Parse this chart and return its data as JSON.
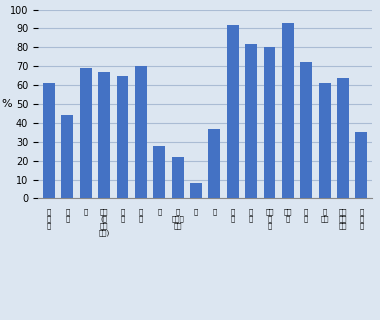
{
  "values": [
    61,
    44,
    69,
    67,
    65,
    70,
    28,
    22,
    8,
    37,
    92,
    82,
    80,
    93,
    72,
    61,
    64,
    35
  ],
  "labels": [
    "全\n部\n位",
    "町\n道",
    "胃",
    "大腥\n(結\n腥・\n直腥)",
    "結\n腥",
    "直\n腥",
    "肝",
    "胆\nのう・\n胆管",
    "膚",
    "肺",
    "乳\n房",
    "子\n宮",
    "子宮\n颢\n部",
    "前立\n腔",
    "膚\n脱",
    "腎\nなど",
    "悪性\nリン\nパ脳",
    "白\n血\n病"
  ],
  "bar_color": "#4472C4",
  "plot_bg_color": "#DCE6F1",
  "fig_bg_color": "#DCE6F1",
  "grid_color": "#AABCD4",
  "ylim": [
    0,
    100
  ],
  "yticks": [
    0,
    10,
    20,
    30,
    40,
    50,
    60,
    70,
    80,
    90,
    100
  ],
  "ylabel": "%",
  "label_fontsize": 5.0,
  "ytick_fontsize": 7.0
}
